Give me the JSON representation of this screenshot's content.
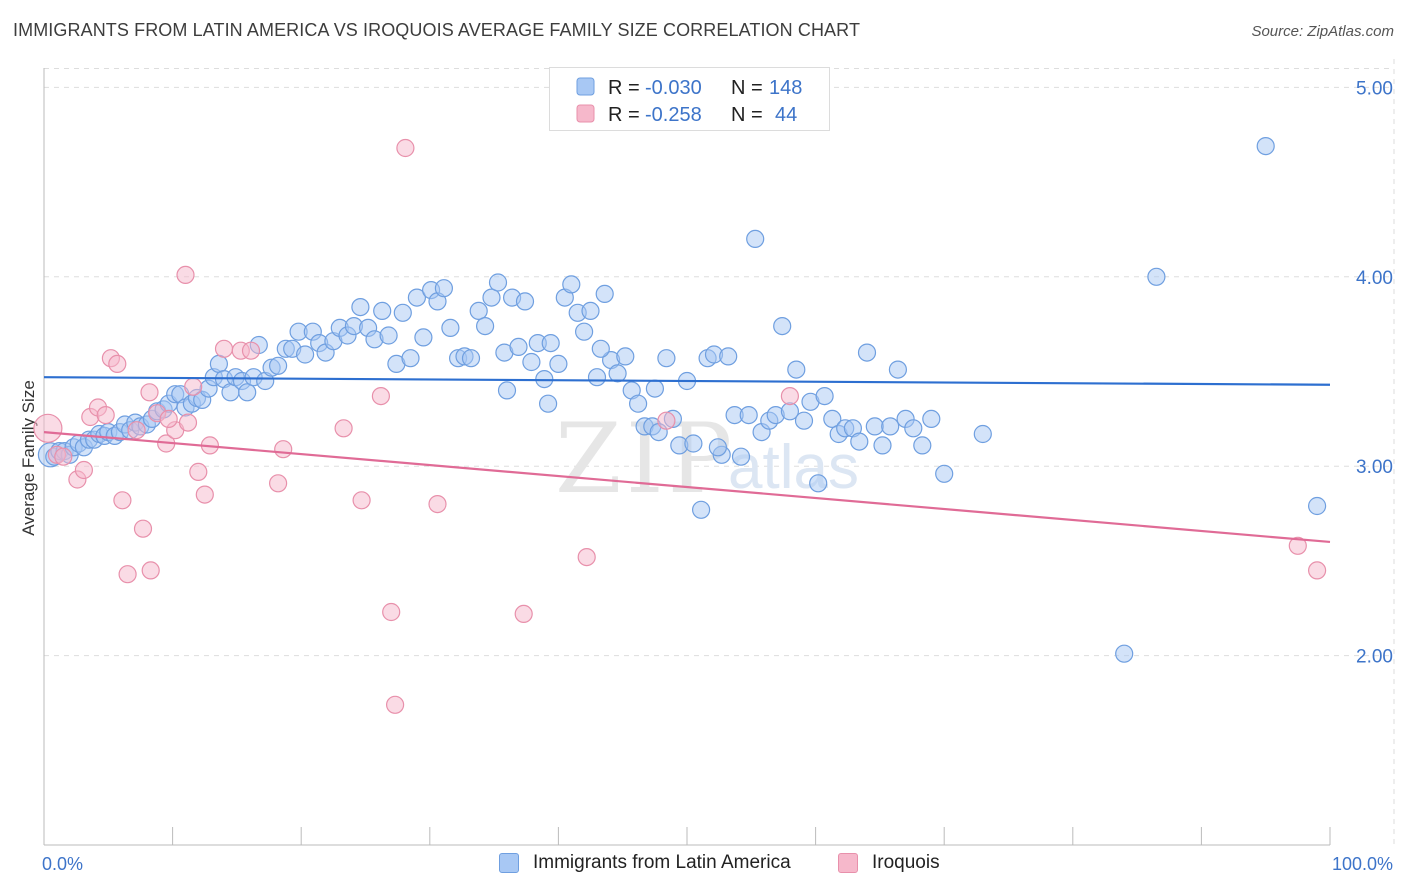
{
  "header": {
    "title": "IMMIGRANTS FROM LATIN AMERICA VS IROQUOIS AVERAGE FAMILY SIZE CORRELATION CHART",
    "source": "Source: ZipAtlas.com"
  },
  "watermark": {
    "zip": "ZIP",
    "atlas": "atlas"
  },
  "colors": {
    "blue_fill": "#a8c8f4",
    "blue_stroke": "#6f9fe0",
    "blue_line": "#2d6fd0",
    "pink_fill": "#f6b8cb",
    "pink_stroke": "#e890ab",
    "pink_line": "#e06b96",
    "tick_text": "#3d74c9",
    "grid": "#dddddd"
  },
  "legend": {
    "rows": [
      {
        "r_label": "R =",
        "r_value": "-0.030",
        "n_label": "N =",
        "n_value": "148"
      },
      {
        "r_label": "R =",
        "r_value": "-0.258",
        "n_label": "N =",
        "n_value": "44"
      }
    ]
  },
  "chart_data": {
    "type": "scatter",
    "title": "IMMIGRANTS FROM LATIN AMERICA VS IROQUOIS AVERAGE FAMILY SIZE CORRELATION CHART",
    "xlabel": "",
    "ylabel": "Average Family Size",
    "xlim": [
      0,
      100
    ],
    "ylim": [
      1.0,
      5.15
    ],
    "x_tick_labels": [
      "0.0%",
      "100.0%"
    ],
    "y_ticks": [
      2.0,
      3.0,
      4.0,
      5.0
    ],
    "y_tick_labels": [
      "2.00",
      "3.00",
      "4.00",
      "5.00"
    ],
    "grid": true,
    "legend_position": "bottom",
    "series": [
      {
        "name": "Immigrants from Latin America",
        "color": "#a8c8f4",
        "trend": {
          "x": [
            0,
            100
          ],
          "y": [
            3.47,
            3.43
          ]
        },
        "points": [
          [
            0.5,
            3.06
          ],
          [
            0.8,
            3.05
          ],
          [
            1.2,
            3.08
          ],
          [
            1.6,
            3.08
          ],
          [
            2.0,
            3.06
          ],
          [
            2.3,
            3.1
          ],
          [
            2.7,
            3.12
          ],
          [
            3.1,
            3.1
          ],
          [
            3.5,
            3.14
          ],
          [
            3.9,
            3.14
          ],
          [
            4.3,
            3.17
          ],
          [
            4.7,
            3.16
          ],
          [
            5.0,
            3.18
          ],
          [
            5.5,
            3.16
          ],
          [
            5.9,
            3.18
          ],
          [
            6.3,
            3.22
          ],
          [
            6.7,
            3.19
          ],
          [
            7.1,
            3.23
          ],
          [
            7.5,
            3.21
          ],
          [
            8.0,
            3.22
          ],
          [
            8.4,
            3.25
          ],
          [
            8.8,
            3.29
          ],
          [
            9.3,
            3.3
          ],
          [
            9.7,
            3.33
          ],
          [
            10.2,
            3.38
          ],
          [
            10.6,
            3.38
          ],
          [
            11.0,
            3.31
          ],
          [
            11.5,
            3.33
          ],
          [
            11.9,
            3.36
          ],
          [
            12.3,
            3.35
          ],
          [
            12.8,
            3.41
          ],
          [
            13.2,
            3.47
          ],
          [
            13.6,
            3.54
          ],
          [
            14.0,
            3.46
          ],
          [
            14.5,
            3.39
          ],
          [
            14.9,
            3.47
          ],
          [
            15.4,
            3.45
          ],
          [
            15.8,
            3.39
          ],
          [
            16.3,
            3.47
          ],
          [
            16.7,
            3.64
          ],
          [
            17.2,
            3.45
          ],
          [
            17.7,
            3.52
          ],
          [
            18.2,
            3.53
          ],
          [
            18.8,
            3.62
          ],
          [
            19.3,
            3.62
          ],
          [
            19.8,
            3.71
          ],
          [
            20.3,
            3.59
          ],
          [
            20.9,
            3.71
          ],
          [
            21.4,
            3.65
          ],
          [
            21.9,
            3.6
          ],
          [
            22.5,
            3.66
          ],
          [
            23.0,
            3.73
          ],
          [
            23.6,
            3.69
          ],
          [
            24.1,
            3.74
          ],
          [
            24.6,
            3.84
          ],
          [
            25.2,
            3.73
          ],
          [
            25.7,
            3.67
          ],
          [
            26.3,
            3.82
          ],
          [
            26.8,
            3.69
          ],
          [
            27.4,
            3.54
          ],
          [
            27.9,
            3.81
          ],
          [
            28.5,
            3.57
          ],
          [
            29.0,
            3.89
          ],
          [
            29.5,
            3.68
          ],
          [
            30.1,
            3.93
          ],
          [
            30.6,
            3.87
          ],
          [
            31.1,
            3.94
          ],
          [
            31.6,
            3.73
          ],
          [
            32.2,
            3.57
          ],
          [
            32.7,
            3.58
          ],
          [
            33.2,
            3.57
          ],
          [
            33.8,
            3.82
          ],
          [
            34.3,
            3.74
          ],
          [
            34.8,
            3.89
          ],
          [
            35.3,
            3.97
          ],
          [
            35.8,
            3.6
          ],
          [
            36.4,
            3.89
          ],
          [
            36.9,
            3.63
          ],
          [
            37.4,
            3.87
          ],
          [
            37.9,
            3.55
          ],
          [
            38.4,
            3.65
          ],
          [
            38.9,
            3.46
          ],
          [
            39.4,
            3.65
          ],
          [
            40.0,
            3.54
          ],
          [
            40.5,
            3.89
          ],
          [
            41.0,
            3.96
          ],
          [
            41.5,
            3.81
          ],
          [
            42.0,
            3.71
          ],
          [
            42.5,
            3.82
          ],
          [
            43.0,
            3.47
          ],
          [
            43.6,
            3.91
          ],
          [
            44.1,
            3.56
          ],
          [
            44.6,
            3.49
          ],
          [
            45.2,
            3.58
          ],
          [
            45.7,
            3.4
          ],
          [
            46.2,
            3.33
          ],
          [
            46.7,
            3.21
          ],
          [
            47.3,
            3.21
          ],
          [
            47.8,
            3.18
          ],
          [
            48.4,
            3.57
          ],
          [
            48.9,
            3.25
          ],
          [
            49.4,
            3.11
          ],
          [
            50.0,
            3.45
          ],
          [
            50.5,
            3.12
          ],
          [
            51.1,
            2.77
          ],
          [
            51.6,
            3.57
          ],
          [
            52.1,
            3.59
          ],
          [
            52.7,
            3.06
          ],
          [
            53.2,
            3.58
          ],
          [
            53.7,
            3.27
          ],
          [
            54.2,
            3.05
          ],
          [
            54.8,
            3.27
          ],
          [
            55.3,
            4.2
          ],
          [
            55.8,
            3.18
          ],
          [
            56.4,
            3.24
          ],
          [
            56.9,
            3.27
          ],
          [
            57.4,
            3.74
          ],
          [
            58.0,
            3.29
          ],
          [
            58.5,
            3.51
          ],
          [
            59.1,
            3.24
          ],
          [
            59.6,
            3.34
          ],
          [
            60.2,
            2.91
          ],
          [
            60.7,
            3.37
          ],
          [
            61.3,
            3.25
          ],
          [
            61.8,
            3.17
          ],
          [
            62.3,
            3.2
          ],
          [
            62.9,
            3.2
          ],
          [
            63.4,
            3.13
          ],
          [
            64.0,
            3.6
          ],
          [
            64.6,
            3.21
          ],
          [
            65.2,
            3.11
          ],
          [
            65.8,
            3.21
          ],
          [
            66.4,
            3.51
          ],
          [
            67.0,
            3.25
          ],
          [
            67.6,
            3.2
          ],
          [
            68.3,
            3.11
          ],
          [
            69.0,
            3.25
          ],
          [
            70.0,
            2.96
          ],
          [
            73.0,
            3.17
          ],
          [
            84.0,
            2.01
          ],
          [
            86.5,
            4.0
          ],
          [
            95.0,
            4.69
          ],
          [
            99.0,
            2.79
          ],
          [
            36.0,
            3.4
          ],
          [
            39.2,
            3.33
          ],
          [
            43.3,
            3.62
          ],
          [
            47.5,
            3.41
          ],
          [
            52.4,
            3.1
          ]
        ]
      },
      {
        "name": "Iroquois",
        "color": "#f6b8cb",
        "trend": {
          "x": [
            0,
            100
          ],
          "y": [
            3.18,
            2.6
          ]
        },
        "points": [
          [
            0.3,
            3.2
          ],
          [
            1.0,
            3.06
          ],
          [
            1.5,
            3.05
          ],
          [
            2.6,
            2.93
          ],
          [
            3.1,
            2.98
          ],
          [
            3.6,
            3.26
          ],
          [
            4.2,
            3.31
          ],
          [
            4.8,
            3.27
          ],
          [
            5.2,
            3.57
          ],
          [
            5.7,
            3.54
          ],
          [
            6.1,
            2.82
          ],
          [
            6.5,
            2.43
          ],
          [
            7.2,
            3.19
          ],
          [
            7.7,
            2.67
          ],
          [
            8.2,
            3.39
          ],
          [
            8.3,
            2.45
          ],
          [
            8.8,
            3.28
          ],
          [
            9.5,
            3.12
          ],
          [
            10.2,
            3.19
          ],
          [
            11.0,
            4.01
          ],
          [
            11.6,
            3.42
          ],
          [
            12.0,
            2.97
          ],
          [
            12.5,
            2.85
          ],
          [
            12.9,
            3.11
          ],
          [
            14.0,
            3.62
          ],
          [
            15.3,
            3.61
          ],
          [
            16.1,
            3.61
          ],
          [
            18.2,
            2.91
          ],
          [
            18.6,
            3.09
          ],
          [
            23.3,
            3.2
          ],
          [
            24.7,
            2.82
          ],
          [
            26.2,
            3.37
          ],
          [
            27.0,
            2.23
          ],
          [
            27.3,
            1.74
          ],
          [
            28.1,
            4.68
          ],
          [
            30.6,
            2.8
          ],
          [
            37.3,
            2.22
          ],
          [
            42.2,
            2.52
          ],
          [
            48.4,
            3.24
          ],
          [
            58.0,
            3.37
          ],
          [
            97.5,
            2.58
          ],
          [
            99.0,
            2.45
          ],
          [
            11.2,
            3.23
          ],
          [
            9.7,
            3.25
          ]
        ]
      }
    ]
  },
  "bottom_legend": {
    "items": [
      {
        "label": "Immigrants from Latin America"
      },
      {
        "label": "Iroquois"
      }
    ]
  }
}
